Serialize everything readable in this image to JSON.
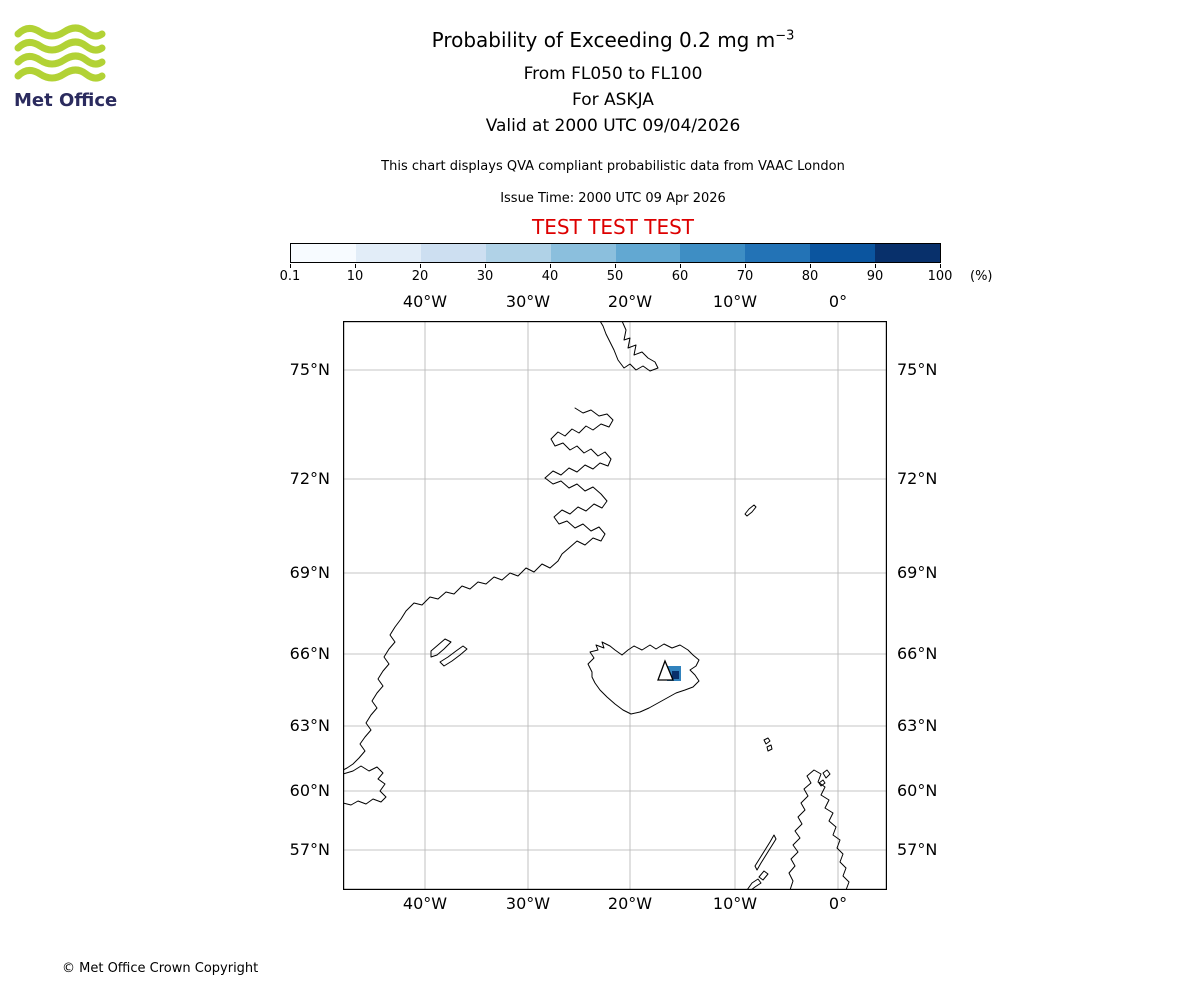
{
  "logo": {
    "brand": "Met Office",
    "green": "#b2d235",
    "text_color": "#2b2b5e"
  },
  "header": {
    "title_main": "Probability of Exceeding 0.2 mg m",
    "title_sup": "−3",
    "subtitle1": "From FL050 to FL100",
    "subtitle2": "For ASKJA",
    "subtitle3": "Valid at 2000 UTC 09/04/2026",
    "note": "This chart displays QVA compliant probabilistic data from VAAC London",
    "issue_time": "Issue Time: 2000 UTC 09 Apr 2026",
    "test_banner": "TEST TEST TEST",
    "test_banner_color": "#dd0000"
  },
  "colorbar": {
    "tick_labels": [
      "0.1",
      "10",
      "20",
      "30",
      "40",
      "50",
      "60",
      "70",
      "80",
      "90",
      "100"
    ],
    "unit_label": "(%)",
    "segment_colors": [
      "#f7fbff",
      "#e2edf8",
      "#cddff1",
      "#b0d2e7",
      "#8bbfdd",
      "#62a8d2",
      "#3e8ec4",
      "#2373b6",
      "#0b559f",
      "#08306b"
    ]
  },
  "map": {
    "lon_labels": [
      "40°W",
      "30°W",
      "20°W",
      "10°W",
      "0°"
    ],
    "lat_labels": [
      "75°N",
      "72°N",
      "69°N",
      "66°N",
      "63°N",
      "60°N",
      "57°N"
    ]
  },
  "marker": {
    "region_color": "#3182bd",
    "core_color": "#08306b",
    "volcano_symbol": "triangle"
  },
  "footer": {
    "copyright": "© Met Office Crown Copyright"
  },
  "chart_data": {
    "type": "map",
    "subtype": "volcanic-ash-probability-chart",
    "title": "Probability of Exceeding 0.2 mg m−3",
    "threshold": "0.2 mg m−3",
    "flight_levels": "FL050 to FL100",
    "volcano": "ASKJA",
    "valid_time": "2000 UTC 09/04/2026",
    "issue_time": "2000 UTC 09 Apr 2026",
    "source": "VAAC London",
    "status": "TEST",
    "colorbar": {
      "unit": "%",
      "boundaries": [
        0.1,
        10,
        20,
        30,
        40,
        50,
        60,
        70,
        80,
        90,
        100
      ],
      "colormap": "Blues"
    },
    "axes": {
      "lon_ticks_deg_east": [
        -40,
        -30,
        -20,
        -10,
        0
      ],
      "lat_ticks_deg_north": [
        75,
        72,
        69,
        66,
        63,
        60,
        57
      ],
      "grid": true,
      "projection": "polar-stereographic-like (latitude spacing shrinks southward)"
    },
    "coastline_features": [
      "Greenland east coast with fjords",
      "Iceland",
      "Jan Mayen",
      "Faroe Islands",
      "Scotland with Outer Hebrides"
    ],
    "probability_region": {
      "location": "small area at Askja volcano, central-east Iceland (approx 65°N 16.5°W)",
      "approx_probability_pct_range": [
        40,
        100
      ]
    },
    "volcano_marker": {
      "symbol": "triangle",
      "location": "Askja, Iceland"
    }
  }
}
